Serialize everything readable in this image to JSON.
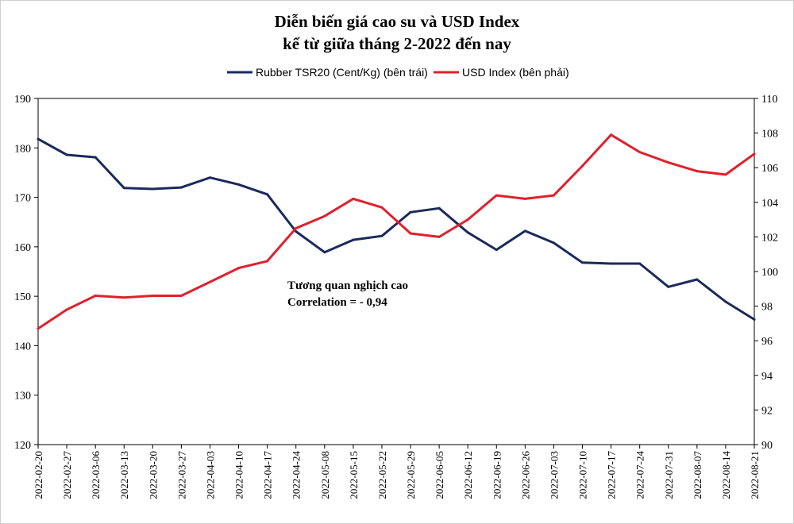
{
  "chart_data": {
    "type": "line",
    "title": "Diễn biến giá cao su và USD Index",
    "subtitle": "kể từ giữa tháng 2-2022 đến nay",
    "categories": [
      "2022-02-20",
      "2022-02-27",
      "2022-03-06",
      "2022-03-13",
      "2022-03-20",
      "2022-03-27",
      "2022-04-03",
      "2022-04-10",
      "2022-04-17",
      "2022-04-24",
      "2022-05-08",
      "2022-05-15",
      "2022-05-22",
      "2022-05-29",
      "2022-06-05",
      "2022-06-12",
      "2022-06-19",
      "2022-06-26",
      "2022-07-03",
      "2022-07-10",
      "2022-07-17",
      "2022-07-24",
      "2022-07-31",
      "2022-08-07",
      "2022-08-14",
      "2022-08-21"
    ],
    "series": [
      {
        "name": "Rubber TSR20 (Cent/Kg) (bên trái)",
        "axis": "left",
        "color": "#1b2a5c",
        "values": [
          181.8,
          178.6,
          178.1,
          171.9,
          171.7,
          172.0,
          174.0,
          172.6,
          170.6,
          163.1,
          158.9,
          161.4,
          162.2,
          167.0,
          167.8,
          162.9,
          159.4,
          163.2,
          160.8,
          156.8,
          156.6,
          156.6,
          151.9,
          153.4,
          148.9,
          145.3
        ]
      },
      {
        "name": "USD Index (bên phải)",
        "axis": "right",
        "color": "#e0202e",
        "values": [
          96.7,
          97.8,
          98.6,
          98.5,
          98.6,
          98.6,
          99.4,
          100.2,
          100.6,
          102.5,
          103.2,
          104.2,
          103.7,
          102.2,
          102.0,
          103.0,
          104.4,
          104.2,
          104.4,
          106.1,
          107.9,
          106.9,
          106.3,
          105.8,
          105.6,
          106.8
        ]
      }
    ],
    "yleft": {
      "min": 120,
      "max": 190,
      "ticks": [
        "120",
        "130",
        "140",
        "150",
        "160",
        "170",
        "180",
        "190"
      ]
    },
    "yright": {
      "min": 90,
      "max": 110,
      "ticks": [
        "90",
        "92",
        "94",
        "96",
        "98",
        "100",
        "102",
        "104",
        "106",
        "108",
        "110"
      ]
    },
    "legend": "top-center",
    "grid": false,
    "annotation": {
      "line1": "Tương quan nghịch cao",
      "line2": "Correlation =  - 0,94"
    }
  }
}
